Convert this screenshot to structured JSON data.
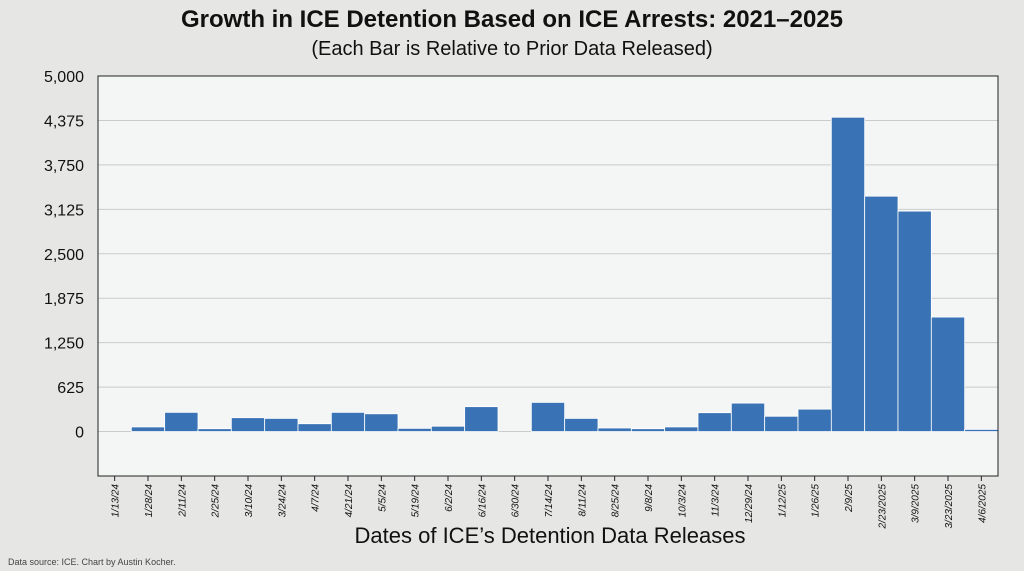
{
  "chart_data": {
    "type": "bar",
    "title": "Growth in ICE Detention Based on ICE Arrests: 2021–2025",
    "subtitle": "(Each Bar is Relative to Prior Data Released)",
    "xlabel": "Dates of ICE’s Detention Data Releases",
    "ylabel": "",
    "ylim": [
      -625,
      5000
    ],
    "yticks": [
      "5,000",
      "4,375",
      "3,750",
      "3,125",
      "2,500",
      "1,875",
      "1,250",
      "625",
      "0"
    ],
    "ytick_values": [
      5000,
      4375,
      3750,
      3125,
      2500,
      1875,
      1250,
      625,
      0
    ],
    "grid": true,
    "categories": [
      "1/13/24",
      "1/28/24",
      "2/11/24",
      "2/25/24",
      "3/10/24",
      "3/24/24",
      "4/7/24",
      "4/21/24",
      "5/5/24",
      "5/19/24",
      "6/2/24",
      "6/16/24",
      "6/30/24",
      "7/14/24",
      "8/11/24",
      "8/25/24",
      "9/8/24",
      "10/3/24",
      "11/3/24",
      "12/29/24",
      "1/12/25",
      "1/26/25",
      "2/9/25",
      "2/23/2025",
      "3/9/2025",
      "3/23/2025",
      "4/6/2025"
    ],
    "values": [
      0,
      65,
      270,
      40,
      195,
      185,
      110,
      270,
      250,
      45,
      75,
      350,
      0,
      410,
      185,
      50,
      40,
      65,
      265,
      400,
      215,
      315,
      4420,
      3310,
      3100,
      1610,
      30
    ],
    "color": "#3a73b5",
    "source": "Data source: ICE. Chart by Austin Kocher."
  }
}
